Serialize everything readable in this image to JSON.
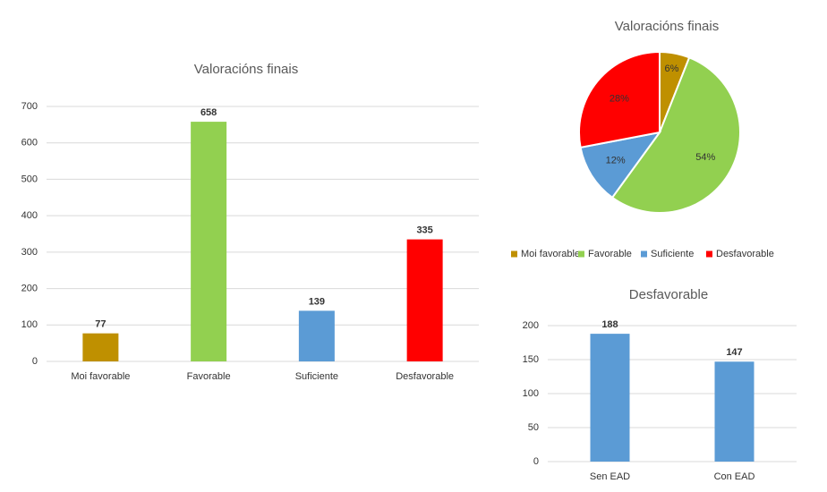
{
  "chart_data": [
    {
      "type": "bar",
      "title": "Valoracións finais",
      "categories": [
        "Moi favorable",
        "Favorable",
        "Suficiente",
        "Desfavorable"
      ],
      "values": [
        77,
        658,
        139,
        335
      ],
      "colors": [
        "#bf9000",
        "#92d050",
        "#5b9bd5",
        "#ff0000"
      ],
      "ylim": [
        0,
        700
      ],
      "yticks": [
        0,
        100,
        200,
        300,
        400,
        500,
        600,
        700
      ],
      "grid": true
    },
    {
      "type": "pie",
      "title": "Valoracións finais",
      "categories": [
        "Moi favorable",
        "Favorable",
        "Suficiente",
        "Desfavorable"
      ],
      "values": [
        6,
        54,
        12,
        28
      ],
      "value_labels": [
        "6%",
        "54%",
        "12%",
        "28%"
      ],
      "colors": [
        "#bf9000",
        "#92d050",
        "#5b9bd5",
        "#ff0000"
      ],
      "legend": "bottom"
    },
    {
      "type": "bar",
      "title": "Desfavorable",
      "categories": [
        "Sen EAD",
        "Con EAD"
      ],
      "values": [
        188,
        147
      ],
      "colors": [
        "#5b9bd5",
        "#5b9bd5"
      ],
      "ylim": [
        0,
        200
      ],
      "yticks": [
        0,
        50,
        100,
        150,
        200
      ],
      "grid": true
    }
  ]
}
